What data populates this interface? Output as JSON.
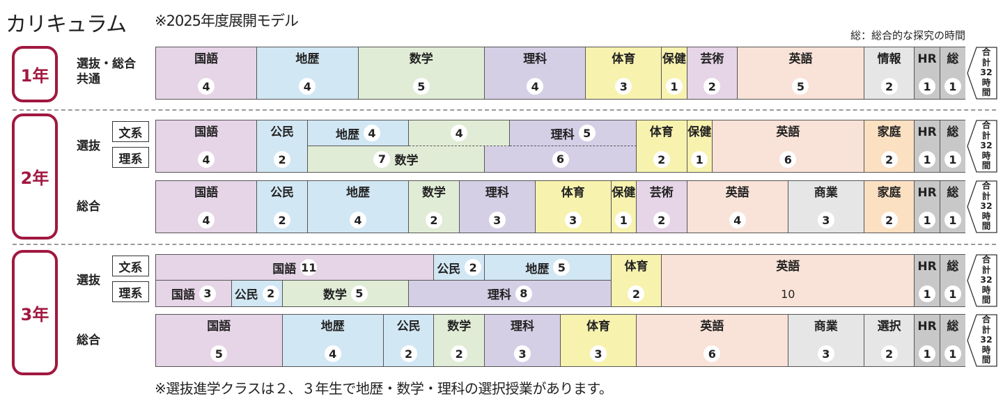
{
  "header": {
    "title": "カリキュラム",
    "subtitle": "※2025年度展開モデル",
    "legend": "総：総合的な探究の時間"
  },
  "footnote": "※選抜進学クラスは２、３年生で地歴・数学・理科の選択授業があります。",
  "subject_colors": {
    "kokugo": "#e6d4e7",
    "chireki": "#d2e7f4",
    "sugaku": "#e1ecd6",
    "rika": "#d5cfe6",
    "taiiku": "#f7f2ae",
    "geijutsu": "#e6d4e7",
    "eigo": "#f9e2d7",
    "gray": "#e6e6e6",
    "katei": "#fbe0c2",
    "hr": "#c8c8c8"
  },
  "total_parts": [
    "合",
    "計",
    "32",
    "時",
    "間"
  ],
  "grades": [
    {
      "label": "1年",
      "tracks": [
        {
          "label": "選抜・総合\n共通",
          "segments": [
            {
              "n": "国語",
              "h": 4,
              "c": "kokugo"
            },
            {
              "n": "地歴",
              "h": 4,
              "c": "chireki"
            },
            {
              "n": "数学",
              "h": 5,
              "c": "sugaku"
            },
            {
              "n": "理科",
              "h": 4,
              "c": "rika"
            },
            {
              "n": "体育",
              "h": 3,
              "c": "taiiku"
            },
            {
              "n": "保健",
              "h": 1,
              "c": "taiiku"
            },
            {
              "n": "芸術",
              "h": 2,
              "c": "geijutsu"
            },
            {
              "n": "英語",
              "h": 5,
              "c": "eigo"
            },
            {
              "n": "情報",
              "h": 2,
              "c": "gray"
            },
            {
              "n": "HR",
              "h": 1,
              "c": "hr"
            },
            {
              "n": "総",
              "h": 1,
              "c": "hr"
            }
          ]
        }
      ]
    },
    {
      "label": "2年",
      "tracks": [
        {
          "label": "選抜",
          "sublabels": [
            "文系",
            "理系"
          ],
          "segments": [
            {
              "n": "国語",
              "h": 4,
              "c": "kokugo"
            },
            {
              "n": "公民",
              "h": 2,
              "c": "chireki"
            },
            {
              "split": true,
              "top": [
                {
                  "n": "地歴",
                  "h": 4,
                  "c": "chireki"
                },
                {
                  "n": "",
                  "h": 4,
                  "c": "sugaku",
                  "dashed": true
                },
                {
                  "n": "理科",
                  "h": 5,
                  "c": "rika",
                  "dashed": true
                }
              ],
              "bottom": [
                {
                  "n": "数学",
                  "h": 7,
                  "c": "sugaku",
                  "num_first": true
                },
                {
                  "n": "",
                  "h": 6,
                  "c": "rika"
                }
              ]
            },
            {
              "n": "体育",
              "h": 2,
              "c": "taiiku"
            },
            {
              "n": "保健",
              "h": 1,
              "c": "taiiku"
            },
            {
              "n": "英語",
              "h": 6,
              "c": "eigo"
            },
            {
              "n": "家庭",
              "h": 2,
              "c": "katei"
            },
            {
              "n": "HR",
              "h": 1,
              "c": "hr"
            },
            {
              "n": "総",
              "h": 1,
              "c": "hr"
            }
          ]
        },
        {
          "label": "総合",
          "segments": [
            {
              "n": "国語",
              "h": 4,
              "c": "kokugo"
            },
            {
              "n": "公民",
              "h": 2,
              "c": "chireki"
            },
            {
              "n": "地歴",
              "h": 4,
              "c": "chireki"
            },
            {
              "n": "数学",
              "h": 2,
              "c": "sugaku"
            },
            {
              "n": "理科",
              "h": 3,
              "c": "rika"
            },
            {
              "n": "体育",
              "h": 3,
              "c": "taiiku"
            },
            {
              "n": "保健",
              "h": 1,
              "c": "taiiku"
            },
            {
              "n": "芸術",
              "h": 2,
              "c": "geijutsu"
            },
            {
              "n": "英語",
              "h": 4,
              "c": "eigo"
            },
            {
              "n": "商業",
              "h": 3,
              "c": "gray"
            },
            {
              "n": "家庭",
              "h": 2,
              "c": "katei"
            },
            {
              "n": "HR",
              "h": 1,
              "c": "hr"
            },
            {
              "n": "総",
              "h": 1,
              "c": "hr"
            }
          ]
        }
      ]
    },
    {
      "label": "3年",
      "tracks": [
        {
          "label": "選抜",
          "sublabels": [
            "文系",
            "理系"
          ],
          "segments": [
            {
              "split": true,
              "top": [
                {
                  "n": "国語",
                  "h": 11,
                  "c": "kokugo"
                },
                {
                  "n": "公民",
                  "h": 2,
                  "c": "chireki"
                },
                {
                  "n": "地歴",
                  "h": 5,
                  "c": "chireki"
                }
              ],
              "bottom": [
                {
                  "n": "国語",
                  "h": 3,
                  "c": "kokugo"
                },
                {
                  "n": "公民",
                  "h": 2,
                  "c": "chireki"
                },
                {
                  "n": "数学",
                  "h": 5,
                  "c": "sugaku"
                },
                {
                  "n": "理科",
                  "h": 8,
                  "c": "rika"
                }
              ]
            },
            {
              "n": "体育",
              "h": 2,
              "c": "taiiku"
            },
            {
              "n": "英語",
              "h": 10,
              "c": "eigo",
              "no_circle": true
            },
            {
              "n": "HR",
              "h": 1,
              "c": "hr"
            },
            {
              "n": "総",
              "h": 1,
              "c": "hr"
            }
          ]
        },
        {
          "label": "総合",
          "segments": [
            {
              "n": "国語",
              "h": 5,
              "c": "kokugo"
            },
            {
              "n": "地歴",
              "h": 4,
              "c": "chireki"
            },
            {
              "n": "公民",
              "h": 2,
              "c": "chireki"
            },
            {
              "n": "数学",
              "h": 2,
              "c": "sugaku"
            },
            {
              "n": "理科",
              "h": 3,
              "c": "rika"
            },
            {
              "n": "体育",
              "h": 3,
              "c": "taiiku"
            },
            {
              "n": "英語",
              "h": 6,
              "c": "eigo"
            },
            {
              "n": "商業",
              "h": 3,
              "c": "gray"
            },
            {
              "n": "選択",
              "h": 2,
              "c": "gray"
            },
            {
              "n": "HR",
              "h": 1,
              "c": "hr"
            },
            {
              "n": "総",
              "h": 1,
              "c": "hr"
            }
          ]
        }
      ]
    }
  ]
}
